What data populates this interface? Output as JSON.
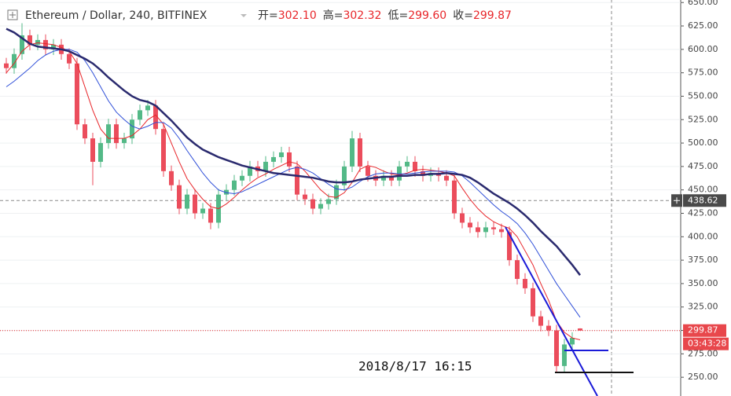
{
  "chart_data": {
    "type": "candlestick",
    "title": "Ethereum / Dollar, 240, BITFINEX",
    "ohlc_legend": [
      {
        "label": "开=",
        "value": "302.10"
      },
      {
        "label": "高=",
        "value": "302.32"
      },
      {
        "label": "低=",
        "value": "299.60"
      },
      {
        "label": "收=",
        "value": "299.87"
      }
    ],
    "open": [
      585,
      580,
      595,
      615,
      605,
      610,
      600,
      605,
      595,
      585,
      520,
      505,
      480,
      500,
      520,
      500,
      505,
      525,
      535,
      540,
      515,
      470,
      455,
      430,
      445,
      425,
      430,
      415,
      445,
      450,
      460,
      465,
      475,
      470,
      480,
      485,
      490,
      475,
      445,
      440,
      430,
      435,
      440,
      455,
      475,
      505,
      475,
      465,
      460,
      465,
      460,
      475,
      480,
      470,
      465,
      468,
      465,
      460,
      425,
      415,
      410,
      405,
      410,
      408,
      405,
      375,
      355,
      345,
      315,
      305,
      300,
      262,
      285,
      302.1
    ],
    "high": [
      591,
      601,
      628,
      621,
      616,
      616,
      611,
      611,
      601,
      591,
      526,
      511,
      506,
      526,
      526,
      511,
      531,
      541,
      546,
      546,
      521,
      476,
      461,
      451,
      451,
      436,
      436,
      451,
      456,
      466,
      471,
      481,
      481,
      486,
      491,
      496,
      496,
      481,
      451,
      446,
      441,
      446,
      461,
      481,
      513,
      511,
      481,
      471,
      471,
      471,
      481,
      486,
      486,
      476,
      474,
      474,
      471,
      466,
      431,
      421,
      416,
      416,
      416,
      414,
      411,
      381,
      361,
      351,
      321,
      311,
      306,
      291,
      298,
      302.32
    ],
    "low": [
      574,
      574,
      589,
      599,
      599,
      594,
      594,
      589,
      579,
      514,
      499,
      455,
      474,
      494,
      494,
      494,
      499,
      519,
      529,
      509,
      464,
      449,
      424,
      424,
      419,
      419,
      408,
      409,
      439,
      444,
      454,
      459,
      464,
      464,
      474,
      479,
      469,
      439,
      434,
      424,
      424,
      429,
      434,
      449,
      469,
      469,
      459,
      454,
      454,
      454,
      454,
      469,
      464,
      459,
      459,
      459,
      454,
      419,
      409,
      404,
      399,
      399,
      402,
      399,
      369,
      349,
      339,
      309,
      299,
      294,
      256,
      256,
      279,
      299.6
    ],
    "close": [
      580,
      595,
      615,
      605,
      610,
      600,
      605,
      595,
      585,
      520,
      505,
      480,
      500,
      520,
      500,
      505,
      525,
      535,
      540,
      515,
      470,
      455,
      430,
      445,
      425,
      430,
      415,
      445,
      450,
      460,
      465,
      475,
      470,
      480,
      485,
      490,
      475,
      445,
      440,
      430,
      435,
      440,
      455,
      475,
      505,
      475,
      465,
      460,
      465,
      460,
      475,
      480,
      470,
      465,
      468,
      465,
      460,
      425,
      415,
      410,
      405,
      410,
      408,
      405,
      375,
      355,
      345,
      315,
      305,
      300,
      262,
      285,
      292,
      299.87
    ],
    "up_color": "#53b987",
    "down_color": "#eb4d5c",
    "series": [
      {
        "color": "#e8262a",
        "values": [
          575,
          585,
          598,
          605,
          607,
          606,
          605,
          602,
          598,
          585,
          560,
          535,
          515,
          505,
          505,
          505,
          508,
          515,
          525,
          530,
          520,
          500,
          480,
          462,
          450,
          440,
          432,
          430,
          435,
          442,
          450,
          457,
          463,
          467,
          472,
          476,
          480,
          478,
          470,
          460,
          450,
          443,
          442,
          447,
          458,
          472,
          476,
          474,
          470,
          467,
          466,
          468,
          471,
          472,
          471,
          470,
          468,
          465,
          452,
          440,
          430,
          422,
          416,
          412,
          409,
          400,
          385,
          370,
          350,
          332,
          310,
          298,
          292,
          290
        ]
      },
      {
        "color": "#2f4fd8",
        "values": [
          560,
          566,
          573,
          580,
          588,
          594,
          598,
          600,
          600,
          597,
          588,
          575,
          560,
          545,
          533,
          525,
          518,
          515,
          518,
          522,
          522,
          516,
          505,
          492,
          480,
          468,
          458,
          450,
          447,
          446,
          448,
          452,
          456,
          460,
          464,
          468,
          472,
          474,
          472,
          468,
          462,
          456,
          451,
          450,
          453,
          459,
          464,
          467,
          468,
          468,
          467,
          467,
          468,
          469,
          470,
          470,
          470,
          469,
          465,
          458,
          450,
          442,
          434,
          427,
          421,
          414,
          404,
          392,
          378,
          364,
          350,
          338,
          326,
          314
        ]
      },
      {
        "color": "#2a2a6e",
        "values": [
          622,
          618,
          612,
          606,
          603,
          602,
          601,
          600,
          598,
          594,
          590,
          585,
          578,
          570,
          563,
          556,
          550,
          546,
          544,
          540,
          532,
          524,
          515,
          506,
          499,
          493,
          489,
          485,
          482,
          479,
          476,
          474,
          472,
          470,
          468,
          467,
          466,
          465,
          464,
          463,
          461,
          459,
          458,
          458,
          459,
          461,
          462,
          463,
          464,
          464,
          465,
          465,
          466,
          466,
          467,
          467,
          468,
          467,
          466,
          463,
          458,
          452,
          446,
          441,
          436,
          430,
          423,
          415,
          406,
          398,
          390,
          380,
          370,
          359
        ]
      }
    ],
    "ylim": [
      230,
      652.7
    ],
    "yticks": [
      {
        "value": 250,
        "label": "250.00"
      },
      {
        "value": 275,
        "label": "275.00"
      },
      {
        "value": 300,
        "label": "300.00"
      },
      {
        "value": 325,
        "label": "325.00"
      },
      {
        "value": 350,
        "label": "350.00"
      },
      {
        "value": 375,
        "label": "375.00"
      },
      {
        "value": 400,
        "label": "400.00"
      },
      {
        "value": 425,
        "label": "425.00"
      },
      {
        "value": 450,
        "label": "450.00"
      },
      {
        "value": 475,
        "label": "475.00"
      },
      {
        "value": 500,
        "label": "500.00"
      },
      {
        "value": 525,
        "label": "525.00"
      },
      {
        "value": 550,
        "label": "550.00"
      },
      {
        "value": 575,
        "label": "575.00"
      },
      {
        "value": 600,
        "label": "600.00"
      },
      {
        "value": 625,
        "label": "625.00"
      },
      {
        "value": 650,
        "label": "650.00"
      }
    ],
    "grid": true,
    "crosshair": 438.62,
    "last_price": 299.87,
    "countdown": "03:43:28",
    "annotation": "2018/8/17  16:15"
  }
}
